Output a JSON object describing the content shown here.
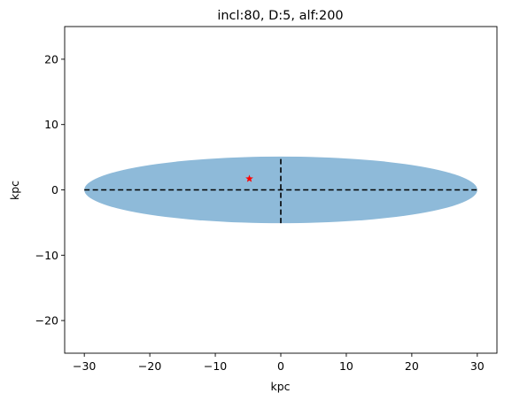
{
  "chart_data": {
    "type": "scatter",
    "title": "incl:80, D:5, alf:200",
    "xlabel": "kpc",
    "ylabel": "kpc",
    "xlim": [
      -33,
      33
    ],
    "ylim": [
      -25,
      25
    ],
    "x_ticks": [
      -30,
      -20,
      -10,
      0,
      10,
      20,
      30
    ],
    "y_ticks": [
      -20,
      -10,
      0,
      10,
      20
    ],
    "x_tick_labels": [
      "−30",
      "−20",
      "−10",
      "0",
      "10",
      "20",
      "30"
    ],
    "y_tick_labels": [
      "−20",
      "−10",
      "0",
      "10",
      "20"
    ],
    "grid": false,
    "ellipse": {
      "center": [
        0,
        0
      ],
      "semi_major": 30,
      "semi_minor": 5.1,
      "color": "#8ebad9"
    },
    "dashed_lines": [
      {
        "x": [
          -30,
          30
        ],
        "y": [
          0,
          0
        ],
        "color": "#000000"
      },
      {
        "x": [
          0,
          0
        ],
        "y": [
          -5.1,
          5.1
        ],
        "color": "#000000"
      }
    ],
    "marker": {
      "x": -4.8,
      "y": 1.7,
      "symbol": "star",
      "color": "#ff0000"
    }
  }
}
